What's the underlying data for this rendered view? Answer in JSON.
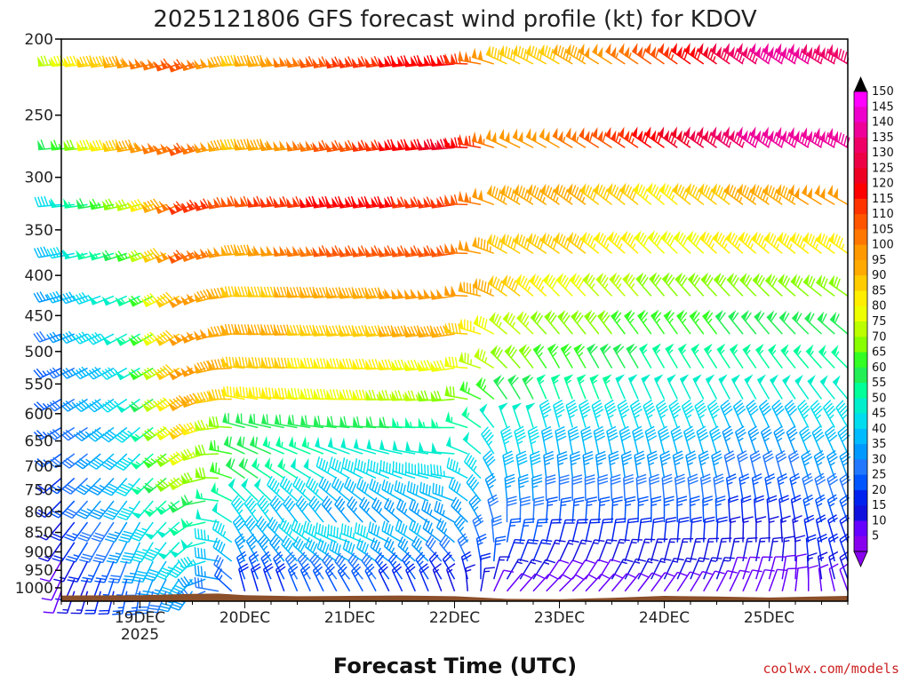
{
  "chart_data": {
    "type": "wind-barb-time-height",
    "title": "2025121806 GFS forecast wind profile (kt) for KDOV",
    "xlabel": "Forecast Time (UTC)",
    "ylabel": "",
    "credit": "coolwx.com/models",
    "y_axis": {
      "scale": "log",
      "range": [
        1040,
        200
      ],
      "ticks": [
        200,
        250,
        300,
        350,
        400,
        450,
        500,
        550,
        600,
        650,
        700,
        750,
        800,
        850,
        900,
        950,
        1000
      ]
    },
    "x_axis": {
      "range_days": [
        18.25,
        25.75
      ],
      "ticks": [
        {
          "day": 19,
          "label": "19DEC",
          "sublabel": "2025"
        },
        {
          "day": 20,
          "label": "20DEC",
          "sublabel": ""
        },
        {
          "day": 21,
          "label": "21DEC",
          "sublabel": ""
        },
        {
          "day": 22,
          "label": "22DEC",
          "sublabel": ""
        },
        {
          "day": 23,
          "label": "23DEC",
          "sublabel": ""
        },
        {
          "day": 24,
          "label": "24DEC",
          "sublabel": ""
        },
        {
          "day": 25,
          "label": "25DEC",
          "sublabel": ""
        }
      ]
    },
    "colorbar": {
      "levels": [
        150,
        145,
        140,
        135,
        130,
        125,
        120,
        115,
        110,
        105,
        100,
        95,
        90,
        85,
        80,
        75,
        70,
        65,
        60,
        55,
        50,
        45,
        40,
        35,
        30,
        25,
        20,
        15,
        10,
        5
      ],
      "colors": {
        "5": "#8800ee",
        "10": "#6600ff",
        "15": "#1111dd",
        "20": "#0022ee",
        "25": "#0055ff",
        "30": "#2277ff",
        "35": "#0099ff",
        "40": "#00bbff",
        "45": "#00ddee",
        "50": "#00eecc",
        "55": "#00ff99",
        "60": "#22ee55",
        "65": "#33ff22",
        "70": "#88ff00",
        "75": "#bbff00",
        "80": "#eeff00",
        "85": "#ffee00",
        "90": "#ffcc00",
        "95": "#ffaa00",
        "100": "#ff9900",
        "105": "#ff7700",
        "110": "#ff5500",
        "115": "#ff3300",
        "120": "#ff0000",
        "125": "#ee0022",
        "130": "#ee0044",
        "135": "#ee0066",
        "140": "#ee0099",
        "145": "#ee00cc",
        "150": "#ff00ff"
      }
    },
    "levels_hpa": [
      200,
      275,
      325,
      375,
      425,
      475,
      525,
      575,
      625,
      675,
      725,
      775,
      825,
      875,
      925,
      975,
      1010
    ],
    "times_days": [
      18.25,
      18.375,
      18.5,
      18.625,
      18.75,
      18.875,
      19.0,
      19.125,
      19.25,
      19.375,
      19.5,
      19.625,
      19.75,
      19.875,
      20.0,
      20.125,
      20.25,
      20.375,
      20.5,
      20.625,
      20.75,
      20.875,
      21.0,
      21.125,
      21.25,
      21.375,
      21.5,
      21.625,
      21.75,
      21.875,
      22.0,
      22.125,
      22.25,
      22.375,
      22.5,
      22.625,
      22.75,
      22.875,
      23.0,
      23.125,
      23.25,
      23.375,
      23.5,
      23.625,
      23.75,
      23.875,
      24.0,
      24.125,
      24.25,
      24.375,
      24.5,
      24.625,
      24.75,
      24.875,
      25.0,
      25.125,
      25.25,
      25.375,
      25.5,
      25.625,
      25.75
    ],
    "wind_key_points": {
      "note_levels": "rows: 200, 275, 325, 375, 425, 475, 525, 575, 625, 675, 725, 775, 825, 875, 925, 975, 1010 hPa",
      "times": [
        18.25,
        19.0,
        19.5,
        20.0,
        21.0,
        22.0,
        22.5,
        23.0,
        24.0,
        25.0,
        25.75
      ],
      "speed_kt": [
        [
          75,
          100,
          110,
          90,
          115,
          120,
          90,
          90,
          110,
          140,
          135
        ],
        [
          60,
          95,
          110,
          90,
          110,
          125,
          100,
          100,
          120,
          140,
          140
        ],
        [
          45,
          75,
          115,
          110,
          120,
          115,
          95,
          95,
          85,
          95,
          100
        ],
        [
          40,
          65,
          110,
          95,
          110,
          110,
          90,
          90,
          80,
          85,
          85
        ],
        [
          35,
          55,
          100,
          90,
          95,
          100,
          90,
          80,
          70,
          70,
          70
        ],
        [
          30,
          55,
          100,
          95,
          90,
          95,
          75,
          70,
          65,
          60,
          60
        ],
        [
          25,
          50,
          100,
          90,
          85,
          80,
          70,
          65,
          55,
          55,
          55
        ],
        [
          25,
          50,
          95,
          85,
          80,
          70,
          60,
          55,
          50,
          50,
          50
        ],
        [
          25,
          45,
          90,
          60,
          60,
          55,
          50,
          45,
          45,
          40,
          45
        ],
        [
          25,
          45,
          80,
          60,
          50,
          50,
          45,
          40,
          40,
          35,
          40
        ],
        [
          20,
          45,
          75,
          60,
          45,
          45,
          40,
          35,
          35,
          30,
          35
        ],
        [
          20,
          45,
          60,
          50,
          40,
          40,
          35,
          30,
          30,
          25,
          30
        ],
        [
          15,
          40,
          55,
          45,
          35,
          35,
          30,
          25,
          25,
          20,
          25
        ],
        [
          15,
          40,
          50,
          40,
          45,
          35,
          25,
          20,
          20,
          15,
          20
        ],
        [
          10,
          35,
          45,
          35,
          40,
          30,
          20,
          15,
          15,
          15,
          20
        ],
        [
          10,
          30,
          40,
          25,
          30,
          20,
          15,
          10,
          15,
          10,
          15
        ],
        [
          10,
          25,
          35,
          20,
          25,
          15,
          10,
          10,
          10,
          10,
          10
        ]
      ],
      "direction_deg": [
        [
          265,
          260,
          250,
          265,
          260,
          265,
          295,
          300,
          305,
          305,
          300
        ],
        [
          265,
          260,
          250,
          265,
          260,
          265,
          295,
          300,
          305,
          305,
          300
        ],
        [
          265,
          255,
          245,
          265,
          262,
          262,
          300,
          305,
          310,
          305,
          300
        ],
        [
          260,
          250,
          245,
          265,
          262,
          262,
          300,
          305,
          315,
          310,
          305
        ],
        [
          255,
          245,
          240,
          270,
          265,
          262,
          305,
          315,
          320,
          315,
          305
        ],
        [
          250,
          240,
          240,
          270,
          265,
          262,
          310,
          320,
          325,
          320,
          310
        ],
        [
          245,
          240,
          240,
          275,
          270,
          262,
          315,
          330,
          330,
          325,
          315
        ],
        [
          240,
          235,
          240,
          280,
          270,
          265,
          325,
          340,
          335,
          330,
          320
        ],
        [
          240,
          230,
          240,
          285,
          275,
          270,
          340,
          345,
          340,
          335,
          330
        ],
        [
          235,
          225,
          240,
          295,
          290,
          275,
          345,
          350,
          345,
          340,
          335
        ],
        [
          230,
          220,
          240,
          305,
          300,
          280,
          350,
          355,
          350,
          345,
          340
        ],
        [
          225,
          215,
          240,
          315,
          310,
          290,
          355,
          360,
          355,
          350,
          340
        ],
        [
          220,
          210,
          235,
          325,
          320,
          300,
          360,
          5,
          0,
          355,
          340
        ],
        [
          215,
          205,
          230,
          330,
          290,
          310,
          10,
          15,
          5,
          0,
          340
        ],
        [
          210,
          200,
          225,
          335,
          300,
          320,
          20,
          25,
          15,
          10,
          340
        ],
        [
          205,
          195,
          220,
          340,
          320,
          330,
          30,
          35,
          25,
          15,
          340
        ],
        [
          200,
          190,
          215,
          345,
          330,
          340,
          40,
          45,
          35,
          20,
          340
        ]
      ]
    },
    "terrain": {
      "color": "#8b4f2a",
      "surface_pressure_hpa": [
        {
          "day": 18.25,
          "p": 1023
        },
        {
          "day": 19.0,
          "p": 1022
        },
        {
          "day": 19.5,
          "p": 1018
        },
        {
          "day": 19.75,
          "p": 1017
        },
        {
          "day": 20.0,
          "p": 1022
        },
        {
          "day": 20.5,
          "p": 1025
        },
        {
          "day": 21.0,
          "p": 1024
        },
        {
          "day": 21.5,
          "p": 1023
        },
        {
          "day": 22.0,
          "p": 1025
        },
        {
          "day": 22.5,
          "p": 1033
        },
        {
          "day": 23.0,
          "p": 1034
        },
        {
          "day": 23.5,
          "p": 1030
        },
        {
          "day": 24.0,
          "p": 1024
        },
        {
          "day": 24.5,
          "p": 1026
        },
        {
          "day": 25.0,
          "p": 1029
        },
        {
          "day": 25.75,
          "p": 1024
        }
      ]
    }
  }
}
